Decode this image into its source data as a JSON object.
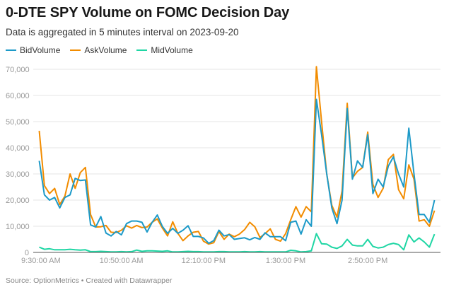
{
  "chart_data": {
    "type": "line",
    "title": "0-DTE SPY Volume on FOMC Decision Day",
    "subtitle": "Data is aggregated in 5 minutes interval on 2023-09-20",
    "xlabel": "",
    "ylabel": "",
    "ylim": [
      0,
      70000
    ],
    "yticks": [
      0,
      10000,
      20000,
      30000,
      40000,
      50000,
      60000,
      70000
    ],
    "ytick_labels": [
      "0",
      "10,000",
      "20,000",
      "30,000",
      "40,000",
      "50,000",
      "60,000",
      "70,000"
    ],
    "x_start": "9:30:00 AM",
    "x_interval_minutes": 5,
    "xtick_labels": [
      {
        "index": 0,
        "label": "9:30:00 AM"
      },
      {
        "index": 16,
        "label": "10:50:00 AM"
      },
      {
        "index": 32,
        "label": "12:10:00 PM"
      },
      {
        "index": 48,
        "label": "1:30:00 PM"
      },
      {
        "index": 64,
        "label": "2:50:00 PM"
      }
    ],
    "grid": true,
    "legend_position": "top-left",
    "series": [
      {
        "name": "BidVolume",
        "color": "#1d9ac8",
        "values": [
          35000,
          22000,
          20000,
          21000,
          17000,
          21000,
          22000,
          28300,
          27500,
          27700,
          10500,
          9700,
          13700,
          7400,
          6300,
          8000,
          6700,
          11000,
          12000,
          12000,
          11500,
          7800,
          11500,
          14300,
          9900,
          7300,
          9200,
          7300,
          8500,
          10200,
          6100,
          6100,
          5500,
          3500,
          4500,
          8500,
          6300,
          6800,
          5000,
          5300,
          5600,
          4800,
          5700,
          5000,
          7500,
          6000,
          6000,
          6000,
          4500,
          11500,
          12000,
          7000,
          12500,
          10000,
          58500,
          45000,
          30000,
          17000,
          11000,
          20000,
          55000,
          28000,
          35000,
          32500,
          45000,
          22500,
          28000,
          25000,
          33000,
          36500,
          30000,
          25000,
          47500,
          30000,
          14500,
          14500,
          11500,
          20000
        ]
      },
      {
        "name": "AskVolume",
        "color": "#f28c00",
        "values": [
          46500,
          25500,
          22500,
          24500,
          18300,
          21500,
          30000,
          24500,
          30500,
          32500,
          14500,
          9700,
          9800,
          10300,
          7700,
          7600,
          8500,
          10200,
          9300,
          10300,
          9500,
          9700,
          11500,
          12800,
          9300,
          6300,
          11700,
          7300,
          4500,
          6300,
          7700,
          8000,
          4300,
          3200,
          3700,
          8000,
          5000,
          7000,
          6000,
          7000,
          8700,
          11500,
          9800,
          5700,
          7200,
          9000,
          5000,
          4300,
          7200,
          12500,
          17500,
          13500,
          17500,
          15500,
          71000,
          50000,
          30000,
          18000,
          13500,
          23500,
          57000,
          28500,
          31000,
          32500,
          46000,
          26000,
          21000,
          24500,
          35500,
          37500,
          24000,
          20500,
          33500,
          28000,
          12000,
          12500,
          10000,
          16000
        ]
      },
      {
        "name": "MidVolume",
        "color": "#1fd6a4",
        "values": [
          2000,
          1200,
          1400,
          1000,
          1000,
          1000,
          1200,
          1000,
          900,
          1000,
          300,
          300,
          400,
          300,
          200,
          200,
          300,
          200,
          300,
          900,
          400,
          600,
          600,
          500,
          400,
          600,
          200,
          200,
          300,
          400,
          300,
          300,
          200,
          200,
          200,
          300,
          300,
          200,
          200,
          200,
          300,
          200,
          200,
          300,
          200,
          200,
          200,
          200,
          200,
          800,
          600,
          200,
          300,
          600,
          7200,
          3300,
          3200,
          2000,
          1500,
          2500,
          5000,
          2800,
          2500,
          2500,
          5000,
          2300,
          1700,
          2000,
          3000,
          3500,
          3000,
          1000,
          6700,
          4000,
          5500,
          4000,
          2000,
          7000
        ]
      }
    ]
  },
  "footer": {
    "text": "Source: OptionMetrics • Created with Datawrapper"
  }
}
